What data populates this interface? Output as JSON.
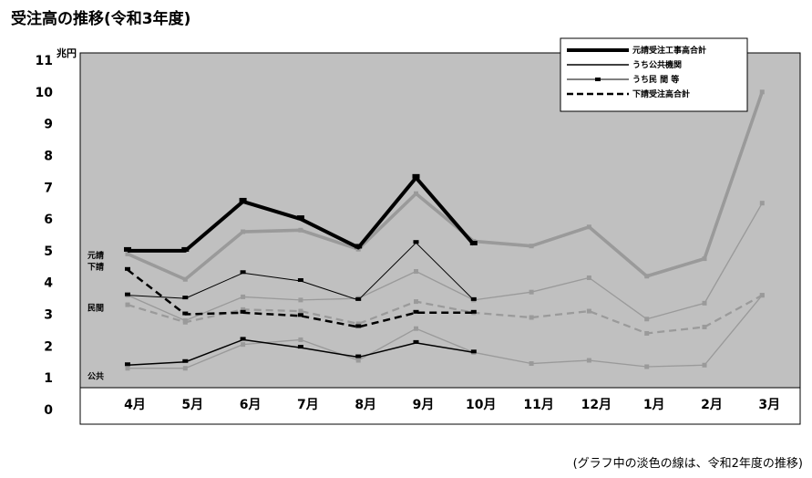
{
  "title": "受注高の推移(令和3年度)",
  "footnote": "(グラフ中の淡色の線は、令和2年度の推移)",
  "chart_data": {
    "type": "line",
    "title": "受注高の推移(令和3年度)",
    "ylabel": "兆円",
    "ylim": [
      0,
      11
    ],
    "yticks": [
      "0",
      "1",
      "2",
      "3",
      "4",
      "5",
      "6",
      "7",
      "8",
      "9",
      "10",
      "11"
    ],
    "categories": [
      "4月",
      "5月",
      "6月",
      "7月",
      "8月",
      "9月",
      "10月",
      "11月",
      "12月",
      "1月",
      "2月",
      "3月"
    ],
    "grid": false,
    "legend_position": "top-right",
    "series": [
      {
        "name": "元請受注工事高合計",
        "style": "thick-solid",
        "color": "#000000",
        "values": [
          5.0,
          5.0,
          6.55,
          6.0,
          5.1,
          7.3,
          5.2,
          null,
          null,
          null,
          null,
          null
        ]
      },
      {
        "name": "うち公共機関",
        "style": "thin-solid",
        "color": "#000000",
        "values": [
          1.4,
          1.5,
          2.2,
          1.95,
          1.65,
          2.1,
          1.8,
          null,
          null,
          null,
          null,
          null
        ]
      },
      {
        "name": "うち民 間 等",
        "style": "thin-marker",
        "color": "#000000",
        "values": [
          3.6,
          3.5,
          4.3,
          4.05,
          3.45,
          5.25,
          3.45,
          null,
          null,
          null,
          null,
          null
        ]
      },
      {
        "name": "下請受注高合計",
        "style": "dashed",
        "color": "#000000",
        "values": [
          4.4,
          3.0,
          3.05,
          2.95,
          2.6,
          3.05,
          3.05,
          null,
          null,
          null,
          null,
          null
        ]
      }
    ],
    "previous_year_series": [
      {
        "ref": "元請受注工事高合計",
        "style": "thick-solid",
        "color": "#9a9a9a",
        "values": [
          4.9,
          4.1,
          5.6,
          5.65,
          5.05,
          6.8,
          5.3,
          5.15,
          5.75,
          4.2,
          4.75,
          10.0
        ]
      },
      {
        "ref": "うち公共機関",
        "style": "thin-solid",
        "color": "#9a9a9a",
        "values": [
          1.3,
          1.3,
          2.05,
          2.2,
          1.55,
          2.55,
          1.8,
          1.45,
          1.55,
          1.35,
          1.4,
          3.6
        ]
      },
      {
        "ref": "うち民 間 等",
        "style": "thin-solid",
        "color": "#9a9a9a",
        "values": [
          3.6,
          2.8,
          3.55,
          3.45,
          3.5,
          4.35,
          3.45,
          3.7,
          4.15,
          2.85,
          3.35,
          6.5
        ]
      },
      {
        "ref": "下請受注高合計",
        "style": "dashed",
        "color": "#9a9a9a",
        "values": [
          3.3,
          2.75,
          3.15,
          3.1,
          2.7,
          3.4,
          3.05,
          2.9,
          3.1,
          2.4,
          2.6,
          3.6
        ]
      }
    ],
    "side_labels": [
      {
        "text": "元請",
        "value": 4.85
      },
      {
        "text": "下請",
        "value": 4.5
      },
      {
        "text": "民間",
        "value": 3.2
      },
      {
        "text": "公共",
        "value": 1.05
      }
    ]
  }
}
